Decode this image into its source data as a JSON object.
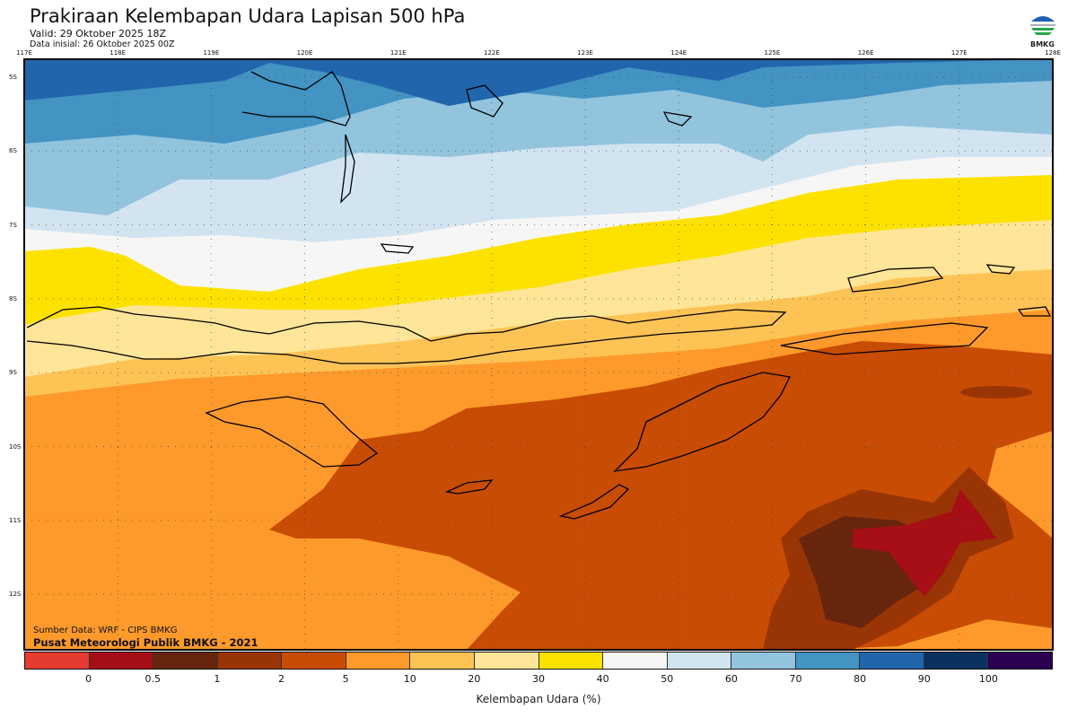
{
  "header": {
    "title": "Prakiraan Kelembapan Udara Lapisan 500 hPa",
    "valid": "Valid: 29 Oktober 2025 18Z",
    "initial": "Data inisial: 26 Oktober 2025 00Z"
  },
  "logo": {
    "text": "BMKG"
  },
  "map": {
    "lon_ticks": [
      "117E",
      "118E",
      "119E",
      "120E",
      "121E",
      "122E",
      "123E",
      "124E",
      "125E",
      "126E",
      "127E",
      "128E"
    ],
    "lat_ticks": [
      "5S",
      "6S",
      "7S",
      "8S",
      "9S",
      "10S",
      "11S",
      "12S"
    ],
    "credit_source": "Sumber Data: WRF - CIPS BMKG",
    "credit_org": "Pusat Meteorologi Publik BMKG - 2021"
  },
  "colorbar": {
    "title": "Kelembapan Udara (%)",
    "labels": [
      "0",
      "0.5",
      "1",
      "2",
      "5",
      "10",
      "20",
      "30",
      "40",
      "50",
      "60",
      "70",
      "80",
      "90",
      "100"
    ],
    "colors": [
      "#e53b30",
      "#a50f15",
      "#67250e",
      "#993505",
      "#c94c04",
      "#fd9a2b",
      "#fec355",
      "#fee597",
      "#fde200",
      "#f6f6f6",
      "#d2e4f0",
      "#92c4de",
      "#4393c3",
      "#2166ac",
      "#0b3161",
      "#2b0050"
    ]
  }
}
